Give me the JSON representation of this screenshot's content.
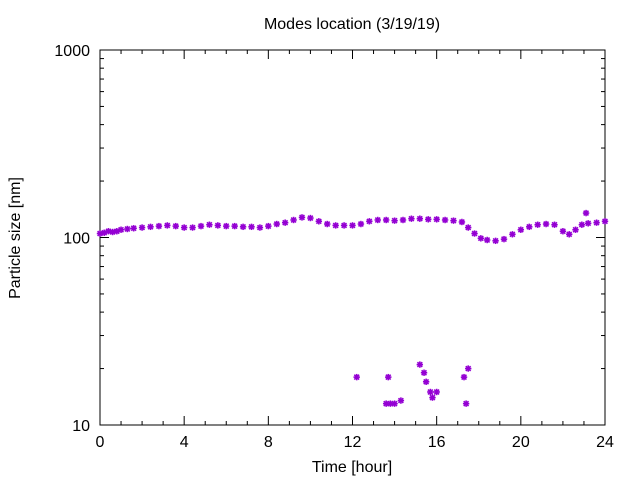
{
  "chart_data": {
    "type": "scatter",
    "title": "Modes location (3/19/19)",
    "xlabel": "Time [hour]",
    "ylabel": "Particle size [nm]",
    "xlim": [
      0,
      24
    ],
    "ylim": [
      10,
      1000
    ],
    "yscale": "log",
    "xticks": [
      0,
      4,
      8,
      12,
      16,
      20,
      24
    ],
    "xtick_labels": [
      "0",
      "4",
      "8",
      "12",
      "16",
      "20",
      "24"
    ],
    "yticks": [
      10,
      100,
      1000
    ],
    "ytick_labels": [
      "10",
      "100",
      "1000"
    ],
    "grid": false,
    "legend": "none",
    "marker_color": "#9400D3",
    "series": [
      {
        "points": [
          [
            0.0,
            105
          ],
          [
            0.2,
            106
          ],
          [
            0.4,
            108
          ],
          [
            0.6,
            107
          ],
          [
            0.8,
            108
          ],
          [
            1.0,
            110
          ],
          [
            1.3,
            111
          ],
          [
            1.6,
            112
          ],
          [
            2.0,
            113
          ],
          [
            2.4,
            114
          ],
          [
            2.8,
            115
          ],
          [
            3.2,
            116
          ],
          [
            3.6,
            115
          ],
          [
            4.0,
            113
          ],
          [
            4.4,
            113
          ],
          [
            4.8,
            115
          ],
          [
            5.2,
            117
          ],
          [
            5.6,
            116
          ],
          [
            6.0,
            115
          ],
          [
            6.4,
            115
          ],
          [
            6.8,
            114
          ],
          [
            7.2,
            114
          ],
          [
            7.6,
            113
          ],
          [
            8.0,
            115
          ],
          [
            8.4,
            118
          ],
          [
            8.8,
            120
          ],
          [
            9.2,
            124
          ],
          [
            9.6,
            128
          ],
          [
            10.0,
            127
          ],
          [
            10.4,
            122
          ],
          [
            10.8,
            118
          ],
          [
            11.2,
            116
          ],
          [
            11.6,
            116
          ],
          [
            12.0,
            116
          ],
          [
            12.4,
            118
          ],
          [
            12.8,
            122
          ],
          [
            13.2,
            124
          ],
          [
            13.6,
            124
          ],
          [
            14.0,
            123
          ],
          [
            14.4,
            124
          ],
          [
            14.8,
            126
          ],
          [
            15.2,
            126
          ],
          [
            15.6,
            125
          ],
          [
            16.0,
            125
          ],
          [
            16.4,
            124
          ],
          [
            16.8,
            123
          ],
          [
            17.2,
            121
          ],
          [
            17.5,
            113
          ],
          [
            17.8,
            105
          ],
          [
            18.1,
            99
          ],
          [
            18.4,
            97
          ],
          [
            18.8,
            96
          ],
          [
            19.2,
            98
          ],
          [
            19.6,
            104
          ],
          [
            20.0,
            110
          ],
          [
            20.4,
            114
          ],
          [
            20.8,
            117
          ],
          [
            21.2,
            118
          ],
          [
            21.6,
            117
          ],
          [
            22.0,
            108
          ],
          [
            22.3,
            104
          ],
          [
            22.6,
            110
          ],
          [
            22.9,
            117
          ],
          [
            23.2,
            119
          ],
          [
            23.6,
            120
          ],
          [
            24.0,
            122
          ],
          [
            23.1,
            135
          ]
        ]
      },
      {
        "points": [
          [
            12.2,
            18
          ],
          [
            13.6,
            13
          ],
          [
            13.8,
            13
          ],
          [
            13.7,
            18
          ],
          [
            14.0,
            13
          ],
          [
            14.3,
            13.5
          ],
          [
            15.2,
            21
          ],
          [
            15.4,
            19
          ],
          [
            15.5,
            17
          ],
          [
            15.7,
            15
          ],
          [
            15.8,
            14
          ],
          [
            16.0,
            15
          ],
          [
            17.3,
            18
          ],
          [
            17.4,
            13
          ],
          [
            17.5,
            20
          ]
        ]
      }
    ]
  }
}
